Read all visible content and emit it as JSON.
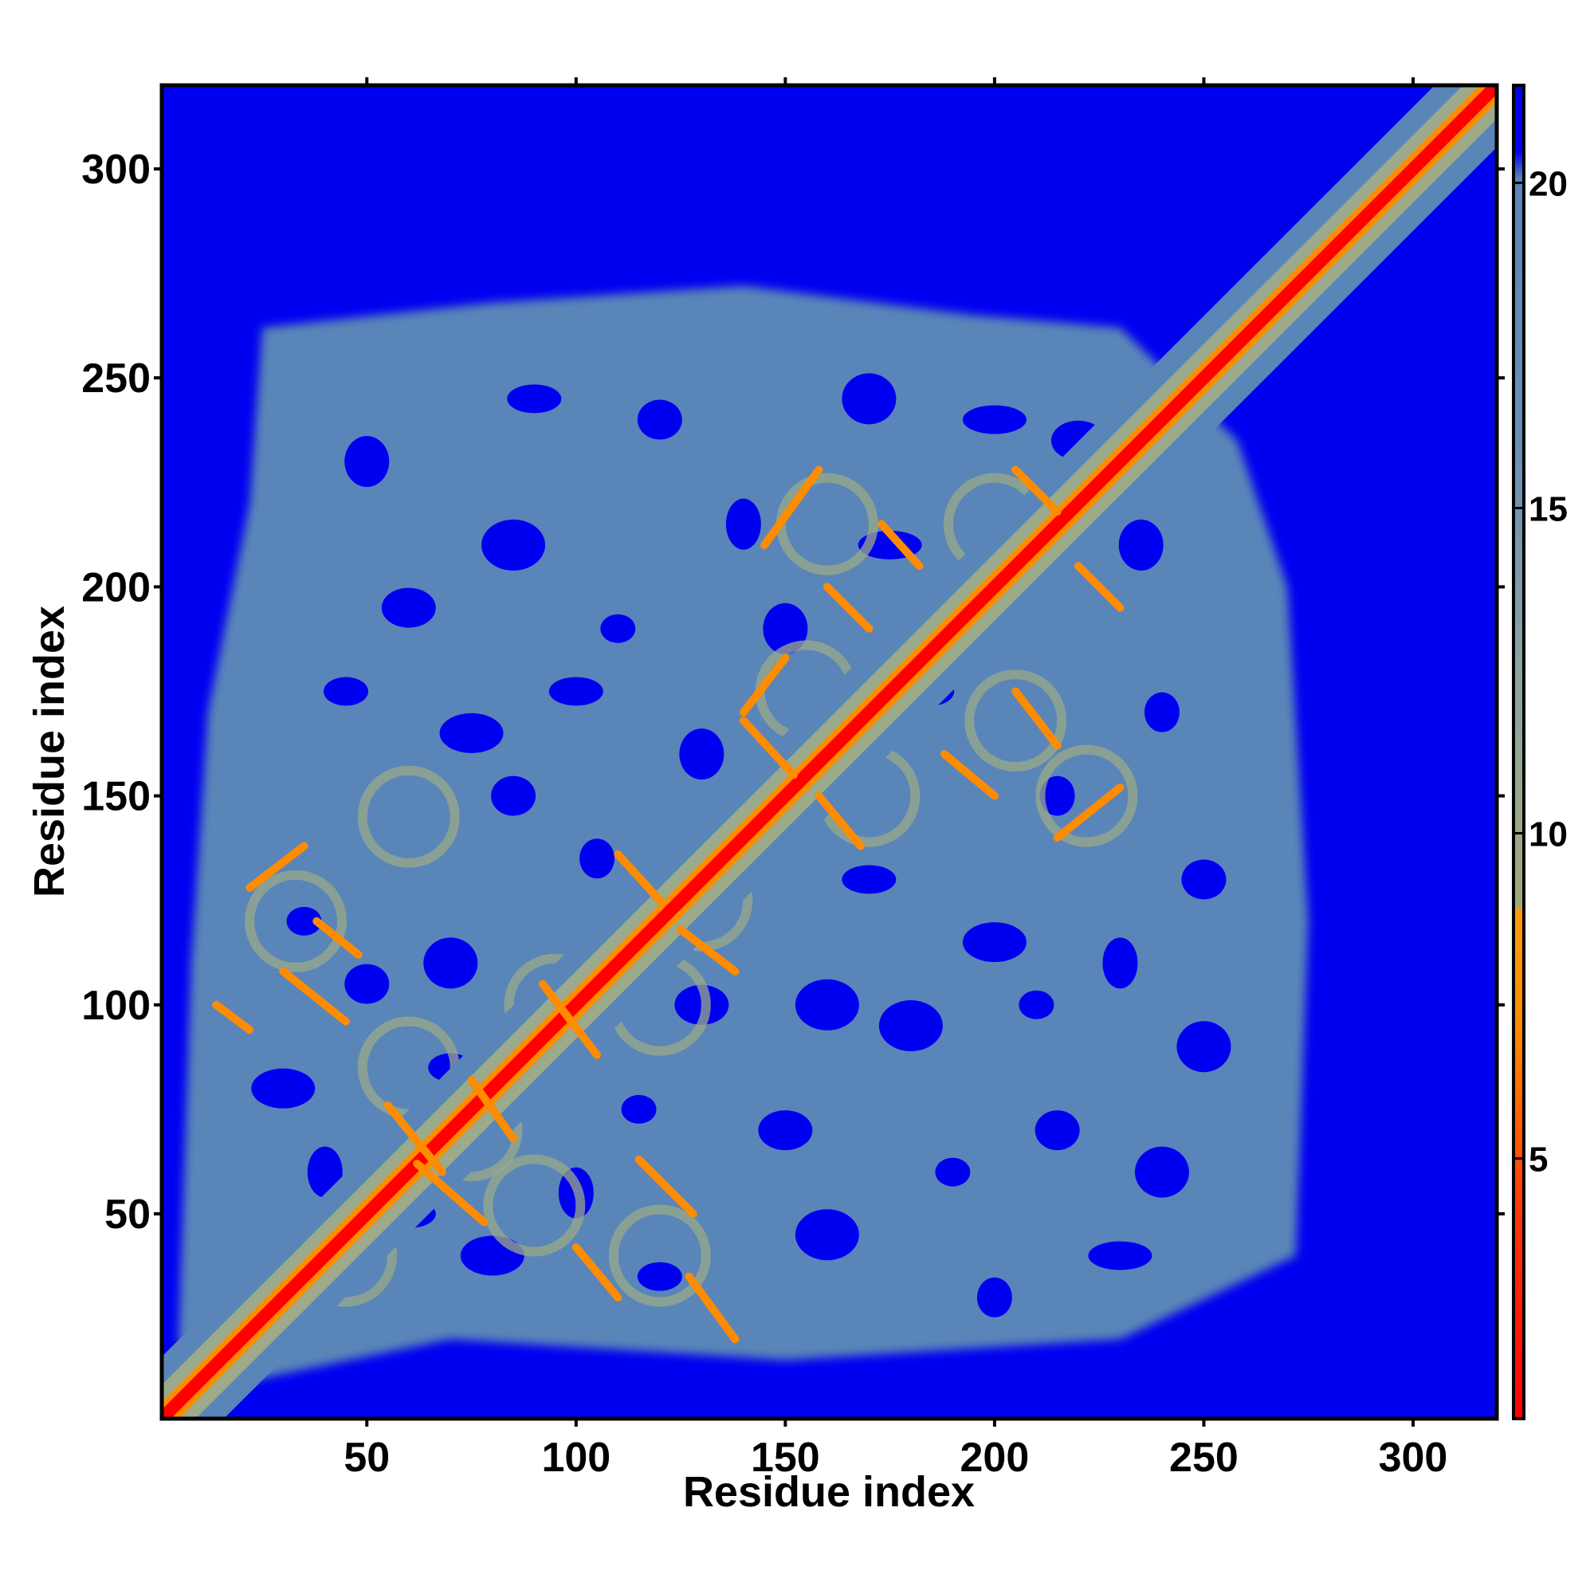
{
  "chart_data": {
    "type": "heatmap",
    "description_kind": "residue-residue distance map",
    "xlabel": "Residue index",
    "ylabel": "Residue index",
    "xlim": [
      1,
      320
    ],
    "ylim": [
      1,
      320
    ],
    "x_ticks": [
      50,
      100,
      150,
      200,
      250,
      300
    ],
    "y_ticks": [
      50,
      100,
      150,
      200,
      250,
      300
    ],
    "x_tick_labels": [
      "50",
      "100",
      "150",
      "200",
      "250",
      "300"
    ],
    "y_tick_labels": [
      "50",
      "100",
      "150",
      "200",
      "250",
      "300"
    ],
    "colorbar": {
      "range": [
        1,
        21.5
      ],
      "ticks": [
        5,
        10,
        15,
        20
      ],
      "tick_labels": [
        "5",
        "10",
        "15",
        "20"
      ],
      "colors": {
        "below_4": "#ff0000",
        "4_to_8": "#ff8c00",
        "8_to_12": "#9aaa8a",
        "12_to_20": "#5a85b8",
        "above_20": "#0000f0"
      }
    },
    "features": {
      "diagonal": "strong red band along x = y from residue 1 to 320",
      "mostly_contact_region": "residues approx 20-270 show gray-blue (12-20) values with blue holes",
      "antiparallel_contacts": [
        {
          "i": 130,
          "j": 50
        },
        {
          "i": 110,
          "j": 80
        },
        {
          "i": 140,
          "j": 150
        },
        {
          "i": 150,
          "j": 170
        },
        {
          "i": 210,
          "j": 150
        },
        {
          "i": 220,
          "j": 210
        },
        {
          "i": 100,
          "j": 50
        },
        {
          "i": 60,
          "j": 120
        }
      ],
      "upper_right_region": "residues 230-320 only near-diagonal contacts; rest blue (>20)"
    }
  }
}
